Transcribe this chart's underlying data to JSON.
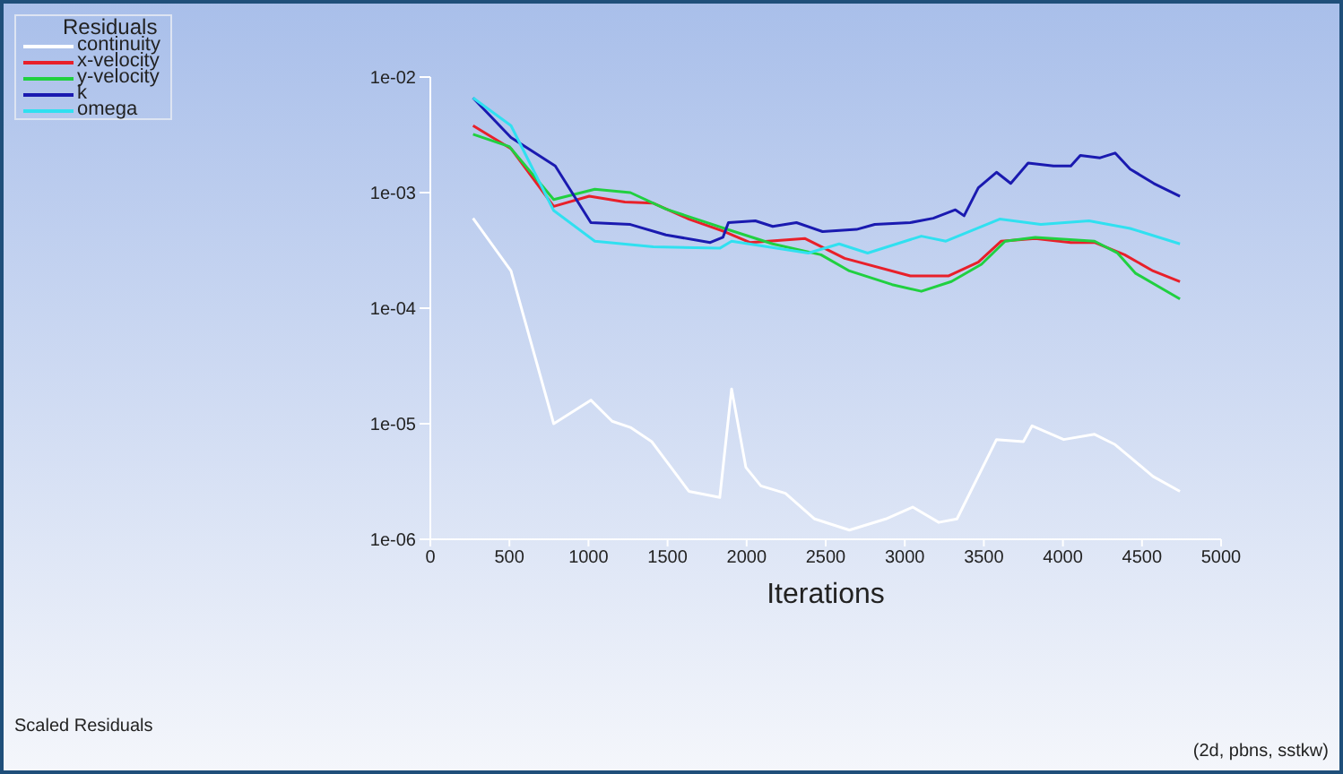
{
  "chart_data": {
    "type": "line",
    "legend_title": "Residuals",
    "xlabel": "Iterations",
    "log": "y",
    "xlim": [
      0,
      5000
    ],
    "xticks": [
      0,
      500,
      1000,
      1500,
      2000,
      2500,
      3000,
      3500,
      4000,
      4500,
      5000
    ],
    "ylim": [
      1e-06,
      0.01
    ],
    "yticks": [
      {
        "value": 1e-06,
        "label": "1e-06"
      },
      {
        "value": 1e-05,
        "label": "1e-05"
      },
      {
        "value": 0.0001,
        "label": "1e-04"
      },
      {
        "value": 0.001,
        "label": "1e-03"
      },
      {
        "value": 0.01,
        "label": "1e-02"
      }
    ],
    "grid": false,
    "legend": "top left",
    "marker": "none",
    "line_style": "solid",
    "annotations": [
      "Scaled Residuals",
      "(2d, pbns, sstkw)"
    ],
    "series": [
      {
        "name": "continuity",
        "color": "#ffffff",
        "x": [
          270,
          510,
          780,
          1015,
          1150,
          1265,
          1400,
          1635,
          1830,
          1905,
          1995,
          2090,
          2245,
          2430,
          2650,
          2880,
          3050,
          3215,
          3330,
          3580,
          3750,
          3805,
          4005,
          4200,
          4330,
          4570,
          4740
        ],
        "values": [
          0.0006,
          0.00021,
          1e-05,
          1.6e-05,
          1.05e-05,
          9.3e-06,
          7e-06,
          2.6e-06,
          2.3e-06,
          2e-05,
          4.2e-06,
          2.9e-06,
          2.5e-06,
          1.5e-06,
          1.2e-06,
          1.5e-06,
          1.9e-06,
          1.4e-06,
          1.5e-06,
          7.3e-06,
          7e-06,
          9.6e-06,
          7.3e-06,
          8.1e-06,
          6.6e-06,
          3.5e-06,
          2.6e-06
        ]
      },
      {
        "name": "x-velocity",
        "color": "#e8202a",
        "x": [
          270,
          510,
          780,
          1005,
          1230,
          1410,
          1635,
          1860,
          2020,
          2370,
          2620,
          3035,
          3275,
          3465,
          3610,
          3825,
          4050,
          4200,
          4390,
          4570,
          4740
        ],
        "values": [
          0.0038,
          0.0024,
          0.00076,
          0.00093,
          0.00083,
          0.00081,
          0.00059,
          0.00046,
          0.00037,
          0.0004,
          0.00027,
          0.00019,
          0.00019,
          0.00025,
          0.00038,
          0.0004,
          0.00037,
          0.00037,
          0.00029,
          0.00021,
          0.00017
        ]
      },
      {
        "name": "y-velocity",
        "color": "#20d040",
        "x": [
          270,
          500,
          780,
          1040,
          1265,
          1490,
          1860,
          2165,
          2470,
          2650,
          2920,
          3105,
          3295,
          3485,
          3635,
          3825,
          4200,
          4345,
          4460,
          4740
        ],
        "values": [
          0.0032,
          0.0025,
          0.00087,
          0.00107,
          0.001,
          0.00072,
          0.00049,
          0.00036,
          0.00029,
          0.00021,
          0.00016,
          0.00014,
          0.00017,
          0.00024,
          0.00038,
          0.00041,
          0.00038,
          0.0003,
          0.0002,
          0.00012
        ]
      },
      {
        "name": "k",
        "color": "#1a1ab0",
        "x": [
          270,
          510,
          790,
          1015,
          1265,
          1490,
          1770,
          1850,
          1885,
          2055,
          2165,
          2315,
          2480,
          2695,
          2810,
          3035,
          3180,
          3320,
          3375,
          3465,
          3580,
          3670,
          3780,
          3940,
          4050,
          4110,
          4235,
          4330,
          4425,
          4575,
          4740
        ],
        "values": [
          0.0066,
          0.003,
          0.0017,
          0.00055,
          0.00053,
          0.00043,
          0.00037,
          0.00041,
          0.00055,
          0.00057,
          0.00051,
          0.00055,
          0.00046,
          0.00048,
          0.00053,
          0.00055,
          0.0006,
          0.00071,
          0.00063,
          0.0011,
          0.0015,
          0.0012,
          0.0018,
          0.0017,
          0.0017,
          0.0021,
          0.002,
          0.0022,
          0.0016,
          0.0012,
          0.00093
        ]
      },
      {
        "name": "omega",
        "color": "#30e0f0",
        "x": [
          270,
          510,
          780,
          1040,
          1410,
          1830,
          1905,
          2390,
          2585,
          2765,
          3105,
          3260,
          3600,
          3860,
          4165,
          4425,
          4740
        ],
        "values": [
          0.0066,
          0.0038,
          0.0007,
          0.00038,
          0.00034,
          0.00033,
          0.00038,
          0.0003,
          0.00036,
          0.0003,
          0.00042,
          0.00038,
          0.00059,
          0.00053,
          0.00057,
          0.00049,
          0.00036
        ]
      }
    ]
  }
}
